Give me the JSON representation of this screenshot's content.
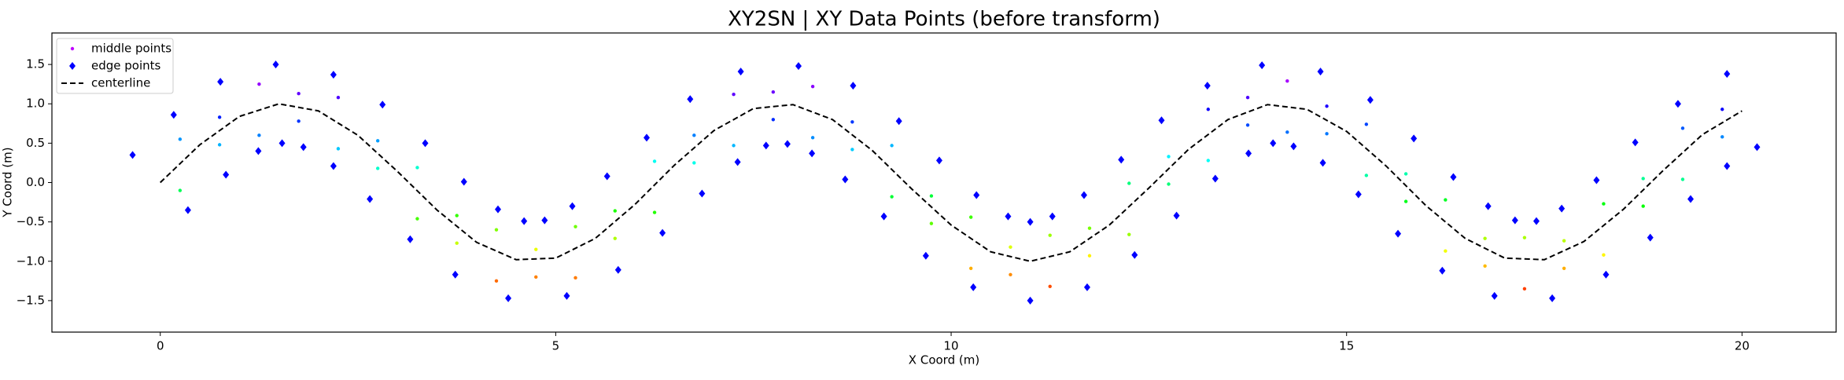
{
  "chart_data": {
    "type": "scatter",
    "title": "XY2SN | XY Data Points (before transform)",
    "xlabel": "X Coord (m)",
    "ylabel": "Y Coord (m)",
    "xlim": [
      -1.37,
      21.19
    ],
    "ylim": [
      -1.9,
      1.9
    ],
    "xticks": [
      0,
      5,
      10,
      15,
      20
    ],
    "yticks": [
      {
        "value": -1.5,
        "label": "−1.5"
      },
      {
        "value": -1,
        "label": "−1.0"
      },
      {
        "value": -0.5,
        "label": "−0.5"
      },
      {
        "value": 0,
        "label": "0.0"
      },
      0.5,
      {
        "value": 1,
        "label": "1.0"
      },
      1.5
    ],
    "legend": "upper left",
    "series": [
      {
        "name": "middle points",
        "type": "scatter",
        "marker": "dot",
        "colormap": "hsv",
        "clim": [
          -1.5,
          1.5
        ],
        "legend_color": "#c000ff",
        "x": [
          0.25,
          0.75,
          1.25,
          1.75,
          2.25,
          2.75,
          3.25,
          3.75,
          4.25,
          4.75,
          5.25,
          5.75,
          6.25,
          6.75,
          7.25,
          7.75,
          8.25,
          8.75,
          9.25,
          9.75,
          10.25,
          10.75,
          11.25,
          11.75,
          12.25,
          12.75,
          13.25,
          13.75,
          14.25,
          14.75,
          15.25,
          15.75,
          16.25,
          16.75,
          17.25,
          17.75,
          18.25,
          18.75,
          19.25,
          19.75,
          0.25,
          0.75,
          1.25,
          1.75,
          2.25,
          2.75,
          3.25,
          3.75,
          4.25,
          4.75,
          5.25,
          5.75,
          6.25,
          6.75,
          7.25,
          7.75,
          8.25,
          8.75,
          9.25,
          9.75,
          10.25,
          10.75,
          11.25,
          11.75,
          12.25,
          12.75,
          13.25,
          13.75,
          14.25,
          14.75,
          15.25,
          15.75,
          16.25,
          16.75,
          17.25,
          17.75,
          18.25,
          18.75,
          19.25,
          19.75
        ],
        "y": [
          0.55,
          0.48,
          1.25,
          0.78,
          1.08,
          0.18,
          0.19,
          -0.77,
          -0.6,
          -1.2,
          -0.56,
          -0.71,
          0.27,
          0.25,
          1.12,
          0.8,
          1.22,
          0.42,
          0.47,
          -0.52,
          -0.44,
          -1.17,
          -0.67,
          -0.93,
          -0.01,
          -0.02,
          0.93,
          0.73,
          1.29,
          0.62,
          0.74,
          -0.24,
          -0.22,
          -1.06,
          -0.7,
          -1.09,
          -0.27,
          -0.3,
          0.69,
          0.58,
          -0.1,
          0.83,
          0.6,
          1.13,
          0.43,
          0.53,
          -0.46,
          -0.42,
          -1.25,
          -0.85,
          -1.21,
          -0.36,
          -0.38,
          0.6,
          0.47,
          1.15,
          0.57,
          0.77,
          -0.18,
          -0.17,
          -1.09,
          -0.82,
          -1.32,
          -0.58,
          -0.66,
          0.33,
          0.28,
          1.08,
          0.64,
          0.97,
          0.09,
          0.11,
          -0.87,
          -0.71,
          -1.35,
          -0.74,
          -0.92,
          0.05,
          0.04,
          0.93
        ]
      },
      {
        "name": "edge points",
        "type": "scatter",
        "marker": "diamond",
        "color": "#0000ff",
        "x": [
          -0.35,
          0.17,
          0.76,
          1.46,
          2.19,
          2.81,
          3.35,
          3.84,
          4.27,
          4.6,
          4.86,
          5.21,
          5.65,
          6.15,
          6.7,
          7.34,
          8.07,
          8.76,
          9.34,
          9.85,
          10.32,
          10.72,
          11.0,
          11.28,
          11.68,
          12.15,
          12.66,
          13.24,
          13.93,
          14.67,
          15.3,
          15.85,
          16.35,
          16.79,
          17.13,
          17.4,
          17.72,
          18.16,
          18.65,
          19.19,
          19.81,
          0.35,
          0.83,
          1.24,
          1.54,
          1.81,
          2.19,
          2.65,
          3.16,
          3.73,
          4.4,
          5.14,
          5.79,
          6.35,
          6.85,
          7.3,
          7.66,
          7.93,
          8.24,
          8.66,
          9.15,
          9.68,
          10.28,
          11.0,
          11.72,
          12.32,
          12.85,
          13.34,
          13.76,
          14.07,
          14.33,
          14.7,
          15.15,
          15.65,
          16.21,
          16.87,
          17.6,
          18.28,
          18.84,
          19.35,
          19.81,
          20.19
        ],
        "y": [
          0.35,
          0.86,
          1.28,
          1.5,
          1.37,
          0.99,
          0.5,
          0.01,
          -0.34,
          -0.49,
          -0.48,
          -0.3,
          0.08,
          0.57,
          1.06,
          1.41,
          1.48,
          1.23,
          0.78,
          0.28,
          -0.16,
          -0.43,
          -0.5,
          -0.43,
          -0.16,
          0.29,
          0.79,
          1.23,
          1.49,
          1.41,
          1.05,
          0.56,
          0.07,
          -0.3,
          -0.48,
          -0.49,
          -0.33,
          0.03,
          0.51,
          1.0,
          1.38,
          -0.35,
          0.1,
          0.4,
          0.5,
          0.45,
          0.21,
          -0.21,
          -0.72,
          -1.17,
          -1.47,
          -1.44,
          -1.11,
          -0.64,
          -0.14,
          0.26,
          0.47,
          0.49,
          0.37,
          0.04,
          -0.43,
          -0.93,
          -1.33,
          -1.5,
          -1.33,
          -0.92,
          -0.42,
          0.05,
          0.37,
          0.5,
          0.46,
          0.25,
          -0.15,
          -0.65,
          -1.12,
          -1.44,
          -1.47,
          -1.17,
          -0.7,
          -0.21,
          0.21,
          0.45
        ]
      },
      {
        "name": "centerline",
        "type": "line",
        "color": "#000000",
        "dash": true,
        "x": [
          0,
          0.5,
          1,
          1.5,
          2,
          2.5,
          3,
          3.5,
          4,
          4.5,
          5,
          5.5,
          6,
          6.5,
          7,
          7.5,
          8,
          8.5,
          9,
          9.5,
          10,
          10.5,
          11,
          11.5,
          12,
          12.5,
          13,
          13.5,
          14,
          14.5,
          15,
          15.5,
          16,
          16.5,
          17,
          17.5,
          18,
          18.5,
          19,
          19.5,
          20
        ],
        "y": [
          0,
          0.48,
          0.84,
          1.0,
          0.91,
          0.6,
          0.14,
          -0.35,
          -0.76,
          -0.98,
          -0.96,
          -0.71,
          -0.28,
          0.22,
          0.66,
          0.94,
          0.99,
          0.8,
          0.41,
          -0.08,
          -0.54,
          -0.88,
          -1.0,
          -0.88,
          -0.54,
          -0.07,
          0.42,
          0.8,
          0.99,
          0.93,
          0.65,
          0.21,
          -0.29,
          -0.71,
          -0.96,
          -0.98,
          -0.75,
          -0.34,
          0.15,
          0.61,
          0.91
        ]
      }
    ]
  }
}
